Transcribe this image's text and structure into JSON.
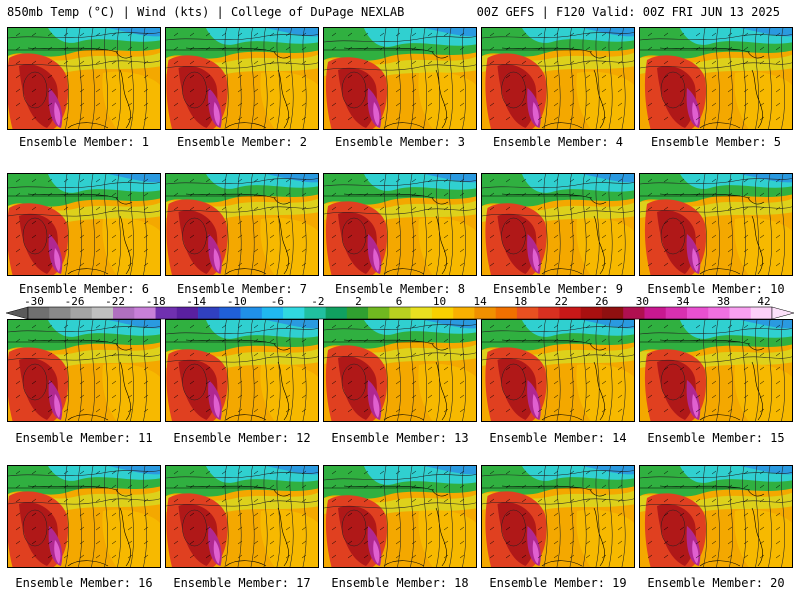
{
  "header": {
    "left": "850mb Temp (°C) | Wind (kts) | College of DuPage NEXLAB",
    "right": "00Z GEFS | F120 Valid: 00Z FRI JUN 13 2025"
  },
  "colorbar": {
    "labels": [
      "-30",
      "-26",
      "-22",
      "-18",
      "-14",
      "-10",
      "-6",
      "-2",
      "2",
      "6",
      "10",
      "14",
      "18",
      "22",
      "26",
      "30",
      "34",
      "38",
      "42"
    ],
    "colors": [
      "#707070",
      "#8a8a8a",
      "#a4a4a4",
      "#c0c0c0",
      "#b070c0",
      "#c880d8",
      "#7030b0",
      "#5a20a0",
      "#3040c0",
      "#2060d8",
      "#2090e8",
      "#20b8f0",
      "#30d8e0",
      "#20c0a0",
      "#10a060",
      "#30a030",
      "#70b820",
      "#b8d020",
      "#e8e020",
      "#f8d000",
      "#f8b000",
      "#f09000",
      "#f07000",
      "#e85020",
      "#d83020",
      "#c81818",
      "#a81010",
      "#901010",
      "#b01050",
      "#c81890",
      "#d830b0",
      "#e850d0",
      "#f070e0",
      "#f8a0f0",
      "#fcd0f8"
    ],
    "min": -30,
    "max": 42
  },
  "members": [
    {
      "label": "Ensemble Member: 1"
    },
    {
      "label": "Ensemble Member: 2"
    },
    {
      "label": "Ensemble Member: 3"
    },
    {
      "label": "Ensemble Member: 4"
    },
    {
      "label": "Ensemble Member: 5"
    },
    {
      "label": "Ensemble Member: 6"
    },
    {
      "label": "Ensemble Member: 7"
    },
    {
      "label": "Ensemble Member: 8"
    },
    {
      "label": "Ensemble Member: 9"
    },
    {
      "label": "Ensemble Member: 10"
    },
    {
      "label": "Ensemble Member: 11"
    },
    {
      "label": "Ensemble Member: 12"
    },
    {
      "label": "Ensemble Member: 13"
    },
    {
      "label": "Ensemble Member: 14"
    },
    {
      "label": "Ensemble Member: 15"
    },
    {
      "label": "Ensemble Member: 16"
    },
    {
      "label": "Ensemble Member: 17"
    },
    {
      "label": "Ensemble Member: 18"
    },
    {
      "label": "Ensemble Member: 19"
    },
    {
      "label": "Ensemble Member: 20"
    }
  ]
}
